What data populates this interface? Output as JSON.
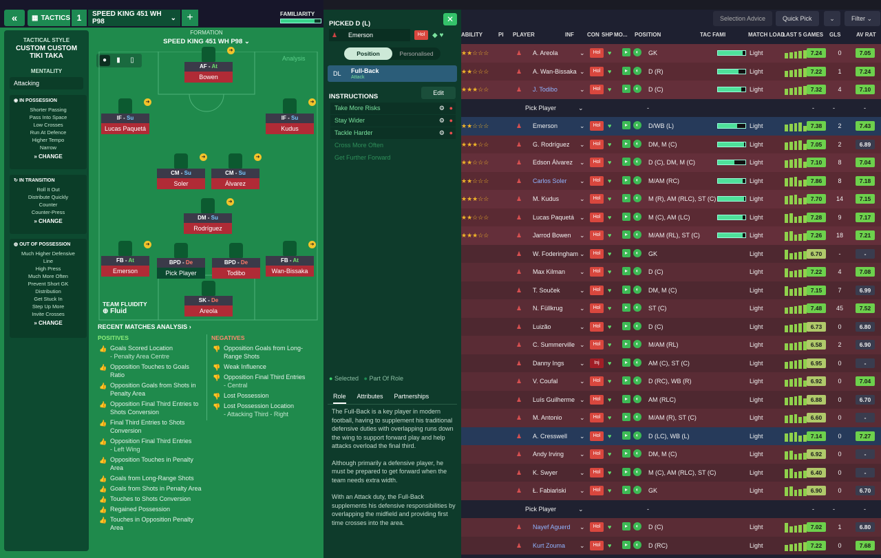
{
  "topbar": {
    "tactics_label": "TACTICS",
    "slot_number": "1",
    "tactic_name": "SPEED KING 451 WH P98",
    "familiarity_label": "FAMILIARITY",
    "familiarity_fraction": 0.85
  },
  "sidebar": {
    "style_heading": "TACTICAL STYLE",
    "style_name_1": "CUSTOM CUSTOM",
    "style_name_2": "TIKI TAKA",
    "mentality_heading": "MENTALITY",
    "mentality_value": "Attacking",
    "in_possession": {
      "title": "IN POSSESSION",
      "items": [
        "Shorter Passing",
        "Pass Into Space",
        "Low Crosses",
        "Run At Defence",
        "Higher Tempo",
        "Narrow"
      ]
    },
    "in_transition": {
      "title": "IN TRANSITION",
      "items": [
        "Roll It Out",
        "Distribute Quickly",
        "Counter",
        "Counter-Press"
      ]
    },
    "out_of_possession": {
      "title": "OUT OF POSSESSION",
      "items": [
        "Much Higher Defensive",
        "Line",
        "High Press",
        "Much More Often",
        "Prevent Short GK",
        "Distribution",
        "Get Stuck In",
        "Step Up More",
        "Invite Crosses"
      ]
    },
    "change_label": "CHANGE"
  },
  "formation": {
    "heading": "FORMATION",
    "name": "SPEED KING 451 WH P98",
    "analysis_label": "Analysis",
    "fluidity_heading": "TEAM FLUIDITY",
    "fluidity_value": "Fluid"
  },
  "pitch_players": [
    {
      "role": "AF",
      "duty": "At",
      "name": "Bowen"
    },
    {
      "role": "IF",
      "duty": "Su",
      "name": "Lucas Paquetá"
    },
    {
      "role": "IF",
      "duty": "Su",
      "name": "Kudus"
    },
    {
      "role": "CM",
      "duty": "Su",
      "name": "Soler"
    },
    {
      "role": "CM",
      "duty": "Su",
      "name": "Álvarez"
    },
    {
      "role": "DM",
      "duty": "Su",
      "name": "Rodríguez"
    },
    {
      "role": "FB",
      "duty": "At",
      "name": "Emerson"
    },
    {
      "role": "BPD",
      "duty": "De",
      "name": "Pick Player"
    },
    {
      "role": "BPD",
      "duty": "De",
      "name": "Todibo"
    },
    {
      "role": "FB",
      "duty": "At",
      "name": "Wan-Bissaka"
    },
    {
      "role": "SK",
      "duty": "De",
      "name": "Areola"
    }
  ],
  "analysis": {
    "heading": "RECENT MATCHES ANALYSIS",
    "positives_heading": "POSITIVES",
    "negatives_heading": "NEGATIVES",
    "positives": [
      {
        "t": "Goals Scored Location",
        "s": "- Penalty Area Centre"
      },
      {
        "t": "Opposition Touches to Goals Ratio",
        "s": ""
      },
      {
        "t": "Opposition Goals from Shots in Penalty Area",
        "s": ""
      },
      {
        "t": "Opposition Final Third Entries to Shots Conversion",
        "s": ""
      },
      {
        "t": "Final Third Entries to Shots Conversion",
        "s": ""
      },
      {
        "t": "Opposition Final Third Entries",
        "s": "- Left Wing"
      },
      {
        "t": "Opposition Touches in Penalty Area",
        "s": ""
      },
      {
        "t": "Goals from Long-Range Shots",
        "s": ""
      },
      {
        "t": "Goals from Shots in Penalty Area",
        "s": ""
      },
      {
        "t": "Touches to Shots Conversion",
        "s": ""
      },
      {
        "t": "Regained Possession",
        "s": ""
      },
      {
        "t": "Touches in Opposition Penalty Area",
        "s": ""
      }
    ],
    "negatives": [
      {
        "t": "Opposition Goals from Long-Range Shots",
        "s": ""
      },
      {
        "t": "Weak Influence",
        "s": ""
      },
      {
        "t": "Opposition Final Third Entries",
        "s": "- Central"
      },
      {
        "t": "Lost Possession",
        "s": ""
      },
      {
        "t": "Lost Possession Location",
        "s": "- Attacking Third - Right"
      }
    ]
  },
  "picked": {
    "title": "PICKED D (L)",
    "player": "Emerson",
    "status": "Hol",
    "tab_position": "Position",
    "tab_personalised": "Personalised",
    "role_abbr": "DL",
    "role_name": "Full-Back",
    "role_duty": "Attack",
    "instructions_heading": "INSTRUCTIONS",
    "edit_label": "Edit",
    "instructions_active": [
      "Take More Risks",
      "Stay Wider",
      "Tackle Harder"
    ],
    "instructions_available": [
      "Cross More Often",
      "Get Further Forward"
    ],
    "legend_selected": "Selected",
    "legend_part": "Part Of Role",
    "tabs": [
      "Role",
      "Attributes",
      "Partnerships"
    ],
    "description": [
      "The Full-Back is a key player in modern football, having to supplement his traditional defensive duties with overlapping runs down the wing to support forward play and help attacks overload the final third.",
      "Although primarily a defensive player, he must be prepared to get forward when the team needs extra width.",
      "With an Attack duty, the Full-Back supplements his defensive responsibilities by overlapping the midfield and providing first time crosses into the area."
    ]
  },
  "toolbar": {
    "selection_advice": "Selection Advice",
    "quick_pick": "Quick Pick",
    "filter": "Filter"
  },
  "columns": [
    "ABILITY",
    "PI",
    "PLAYER",
    "INF",
    "CON",
    "SHP",
    "MO...",
    "POSITION",
    "TAC FAMI",
    "MATCH LOAD",
    "LAST 5 GAMES",
    "GLS",
    "AV RAT"
  ],
  "players": [
    {
      "name": "A. Areola",
      "pos": "GK",
      "load": "Light",
      "last": "7.24",
      "gls": "0",
      "av": "7.05",
      "stars": 2,
      "tf": 0.9,
      "sel": true
    },
    {
      "name": "A. Wan-Bissaka",
      "pos": "D (R)",
      "load": "Light",
      "last": "7.22",
      "gls": "1",
      "av": "7.24",
      "stars": 2,
      "tf": 0.75,
      "sel": true
    },
    {
      "name": "J. Todibo",
      "pos": "D (C)",
      "load": "Light",
      "last": "7.32",
      "gls": "4",
      "av": "7.10",
      "stars": 3,
      "tf": 0.85,
      "sel": true,
      "blue": true
    },
    {
      "name": "Pick Player",
      "pos": "-",
      "load": "",
      "last": "-",
      "gls": "-",
      "av": "-",
      "pick": true
    },
    {
      "name": "Emerson",
      "pos": "D/WB (L)",
      "load": "Light",
      "last": "7.38",
      "gls": "2",
      "av": "7.43",
      "stars": 2,
      "tf": 0.7,
      "sel": true,
      "hl": true
    },
    {
      "name": "G. Rodríguez",
      "pos": "DM, M (C)",
      "load": "Light",
      "last": "7.05",
      "gls": "2",
      "av": "6.89",
      "stars": 3,
      "tf": 0.95,
      "sel": true
    },
    {
      "name": "Edson Álvarez",
      "pos": "D (C), DM, M (C)",
      "load": "Light",
      "last": "7.10",
      "gls": "8",
      "av": "7.04",
      "stars": 2,
      "tf": 0.6,
      "sel": true
    },
    {
      "name": "Carlos Soler",
      "pos": "M/AM (RC)",
      "load": "Light",
      "last": "7.86",
      "gls": "8",
      "av": "7.18",
      "stars": 2,
      "tf": 0.9,
      "sel": true,
      "blue": true
    },
    {
      "name": "M. Kudus",
      "pos": "M (R), AM (RLC), ST (C)",
      "load": "Light",
      "last": "7.70",
      "gls": "14",
      "av": "7.15",
      "stars": 3,
      "tf": 0.95,
      "sel": true
    },
    {
      "name": "Lucas Paquetá",
      "pos": "M (C), AM (LC)",
      "load": "Light",
      "last": "7.28",
      "gls": "9",
      "av": "7.17",
      "stars": 2,
      "tf": 0.9,
      "sel": true
    },
    {
      "name": "Jarrod Bowen",
      "pos": "M/AM (RL), ST (C)",
      "load": "Light",
      "last": "7.26",
      "gls": "18",
      "av": "7.21",
      "stars": 3,
      "tf": 0.9,
      "sel": true
    },
    {
      "name": "W. Foderingham",
      "pos": "GK",
      "load": "Light",
      "last": "6.70",
      "gls": "-",
      "av": "-"
    },
    {
      "name": "Max Kilman",
      "pos": "D (C)",
      "load": "Light",
      "last": "7.22",
      "gls": "4",
      "av": "7.08"
    },
    {
      "name": "T. Souček",
      "pos": "DM, M (C)",
      "load": "Light",
      "last": "7.15",
      "gls": "7",
      "av": "6.99"
    },
    {
      "name": "N. Füllkrug",
      "pos": "ST (C)",
      "load": "Light",
      "last": "7.48",
      "gls": "45",
      "av": "7.52"
    },
    {
      "name": "Luizão",
      "pos": "D (C)",
      "load": "Light",
      "last": "6.73",
      "gls": "0",
      "av": "6.80"
    },
    {
      "name": "C. Summerville",
      "pos": "M/AM (RL)",
      "load": "Light",
      "last": "6.58",
      "gls": "2",
      "av": "6.90"
    },
    {
      "name": "Danny Ings",
      "pos": "AM (C), ST (C)",
      "load": "Light",
      "last": "6.95",
      "gls": "0",
      "av": "-",
      "inj": "Inj"
    },
    {
      "name": "V. Coufal",
      "pos": "D (RC), WB (R)",
      "load": "Light",
      "last": "6.92",
      "gls": "0",
      "av": "7.04"
    },
    {
      "name": "Luís Guilherme",
      "pos": "AM (RLC)",
      "load": "Light",
      "last": "6.88",
      "gls": "0",
      "av": "6.70"
    },
    {
      "name": "M. Antonio",
      "pos": "M/AM (R), ST (C)",
      "load": "Light",
      "last": "6.60",
      "gls": "0",
      "av": "-"
    },
    {
      "name": "A. Cresswell",
      "pos": "D (LC), WB (L)",
      "load": "Light",
      "last": "7.14",
      "gls": "0",
      "av": "7.27",
      "hl": true
    },
    {
      "name": "Andy Irving",
      "pos": "DM, M (C)",
      "load": "Light",
      "last": "6.92",
      "gls": "0",
      "av": "-"
    },
    {
      "name": "K. Swyer",
      "pos": "M (C), AM (RLC), ST (C)",
      "load": "Light",
      "last": "6.40",
      "gls": "0",
      "av": "-"
    },
    {
      "name": "Ł. Fabiański",
      "pos": "GK",
      "load": "Light",
      "last": "6.90",
      "gls": "0",
      "av": "6.70"
    },
    {
      "name": "Pick Player",
      "pos": "-",
      "load": "",
      "last": "-",
      "gls": "-",
      "av": "-",
      "pick": true
    },
    {
      "name": "Nayef Aguerd",
      "pos": "D (C)",
      "load": "Light",
      "last": "7.02",
      "gls": "1",
      "av": "6.80",
      "blue": true
    },
    {
      "name": "Kurt Zouma",
      "pos": "D (RC)",
      "load": "Light",
      "last": "7.22",
      "gls": "0",
      "av": "7.68",
      "blue": true
    }
  ],
  "colors": {
    "pitch": "#1f8a4c",
    "panel": "#0e3b2b",
    "row_red": "#5a2a33",
    "row_blue": "#263a5a",
    "badge_green": "#6dd14c"
  }
}
